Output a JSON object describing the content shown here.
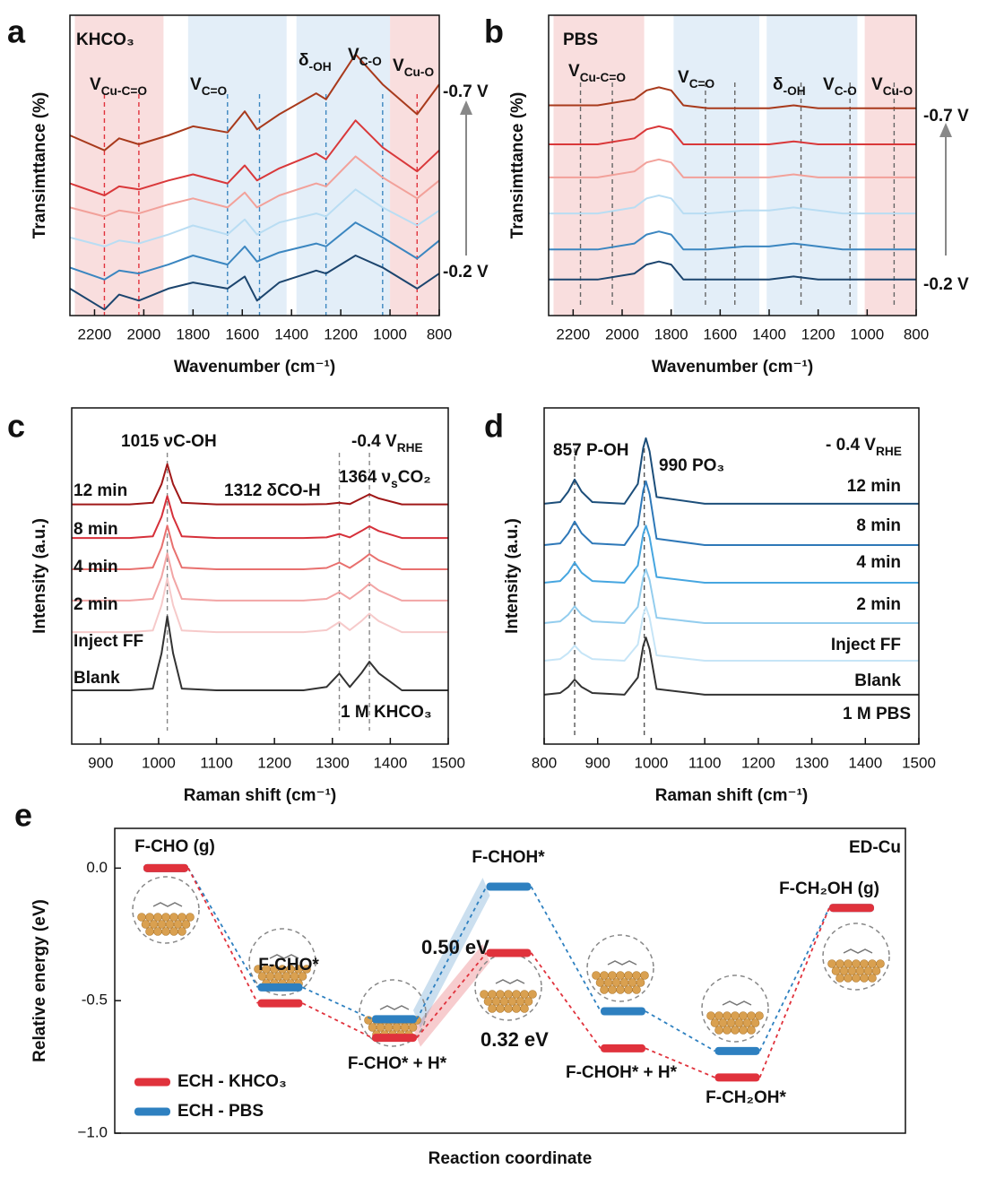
{
  "chart_data": [
    {
      "type": "line",
      "panel": "a",
      "xlabel": "Wavenumber (cm⁻¹)",
      "ylabel": "Transimttance (%)",
      "x": [
        2300,
        2160,
        2100,
        2020,
        1900,
        1800,
        1660,
        1590,
        1540,
        1450,
        1300,
        1260,
        1140,
        1030,
        890,
        800
      ],
      "xlim": [
        2300,
        800
      ],
      "xticks": [
        2200,
        2000,
        1800,
        1600,
        1400,
        1200,
        1000,
        800
      ],
      "ylim": [
        0,
        10
      ],
      "series": [
        {
          "color": "#a83a1c",
          "values": [
            6.0,
            5.5,
            5.9,
            5.7,
            6.0,
            6.3,
            6.1,
            6.8,
            6.2,
            6.7,
            7.4,
            7.2,
            8.7,
            7.7,
            6.7,
            7.7
          ]
        },
        {
          "color": "#d9383a",
          "values": [
            4.4,
            4.0,
            4.3,
            4.2,
            4.5,
            4.7,
            4.4,
            5.0,
            4.5,
            4.9,
            5.4,
            5.2,
            6.5,
            5.6,
            4.8,
            5.5
          ]
        },
        {
          "color": "#f2a19a",
          "values": [
            3.6,
            3.3,
            3.5,
            3.4,
            3.7,
            3.9,
            3.6,
            4.1,
            3.6,
            4.0,
            4.4,
            4.3,
            5.3,
            4.6,
            3.9,
            4.5
          ]
        },
        {
          "color": "#b9ddf3",
          "values": [
            2.6,
            2.3,
            2.5,
            2.4,
            2.7,
            3.0,
            2.7,
            3.2,
            2.7,
            3.1,
            3.4,
            3.3,
            4.2,
            3.6,
            3.0,
            3.5
          ]
        },
        {
          "color": "#3b86c0",
          "values": [
            1.6,
            1.2,
            1.5,
            1.4,
            1.7,
            2.0,
            1.7,
            2.3,
            1.8,
            2.1,
            2.4,
            2.3,
            3.1,
            2.6,
            1.9,
            2.5
          ]
        },
        {
          "color": "#1c456e",
          "values": [
            0.9,
            0.2,
            0.7,
            0.5,
            0.9,
            1.1,
            0.9,
            1.3,
            0.5,
            1.1,
            1.5,
            1.4,
            2.0,
            1.6,
            0.9,
            1.4
          ]
        }
      ],
      "bands": [
        {
          "from": 2280,
          "to": 1920,
          "color": "#f9dede"
        },
        {
          "from": 1820,
          "to": 1420,
          "color": "#e3eef8"
        },
        {
          "from": 1380,
          "to": 1000,
          "color": "#e3eef8"
        },
        {
          "from": 1000,
          "to": 800,
          "color": "#f9dede"
        }
      ],
      "markers": [
        {
          "x": 2160,
          "color": "#e0323c"
        },
        {
          "x": 2020,
          "color": "#e0323c"
        },
        {
          "x": 1660,
          "color": "#3b86c0"
        },
        {
          "x": 1530,
          "color": "#3b86c0"
        },
        {
          "x": 1260,
          "color": "#3b86c0"
        },
        {
          "x": 1030,
          "color": "#3b86c0"
        },
        {
          "x": 890,
          "color": "#e0323c"
        }
      ],
      "annotations": [
        {
          "text": "KHCO₃"
        },
        {
          "text": [
            "V",
            {
              "sub": "Cu-C=O"
            }
          ]
        },
        {
          "text": [
            "V",
            {
              "sub": "C=O"
            }
          ]
        },
        {
          "text": [
            "δ",
            {
              "sub": "-OH"
            }
          ]
        },
        {
          "text": [
            "V",
            {
              "sub": "C-O"
            }
          ]
        },
        {
          "text": [
            "V",
            {
              "sub": "Cu-O"
            }
          ]
        },
        {
          "text": "-0.7 V",
          "color": "#a83a1c"
        },
        {
          "text": "-0.2 V",
          "color": "#1c5a8c"
        }
      ]
    },
    {
      "type": "line",
      "panel": "b",
      "xlabel": "Wavenumber (cm⁻¹)",
      "ylabel": "Transimttance (%)",
      "x": [
        2300,
        2100,
        1950,
        1900,
        1850,
        1800,
        1750,
        1650,
        1500,
        1400,
        1300,
        1200,
        1100,
        1000,
        800
      ],
      "xlim": [
        2300,
        800
      ],
      "xticks": [
        2200,
        2000,
        1800,
        1600,
        1400,
        1200,
        1000,
        800
      ],
      "ylim": [
        0,
        10
      ],
      "series": [
        {
          "color": "#a83a1c",
          "values": [
            7.0,
            7.0,
            7.2,
            7.5,
            7.6,
            7.5,
            7.0,
            6.9,
            6.9,
            6.9,
            7.0,
            6.9,
            6.9,
            6.9,
            6.9
          ]
        },
        {
          "color": "#d9383a",
          "values": [
            5.7,
            5.7,
            5.9,
            6.2,
            6.3,
            6.2,
            5.7,
            5.7,
            5.7,
            5.7,
            5.8,
            5.7,
            5.7,
            5.7,
            5.7
          ]
        },
        {
          "color": "#f2a19a",
          "values": [
            4.6,
            4.6,
            4.8,
            5.1,
            5.2,
            5.1,
            4.6,
            4.6,
            4.6,
            4.6,
            4.7,
            4.6,
            4.6,
            4.6,
            4.6
          ]
        },
        {
          "color": "#b9ddf3",
          "values": [
            3.4,
            3.4,
            3.6,
            3.9,
            4.0,
            3.9,
            3.4,
            3.4,
            3.5,
            3.5,
            3.6,
            3.5,
            3.4,
            3.4,
            3.4
          ]
        },
        {
          "color": "#3b86c0",
          "values": [
            2.2,
            2.2,
            2.4,
            2.7,
            2.8,
            2.7,
            2.2,
            2.2,
            2.3,
            2.3,
            2.4,
            2.3,
            2.2,
            2.2,
            2.2
          ]
        },
        {
          "color": "#1c456e",
          "values": [
            1.2,
            1.2,
            1.4,
            1.7,
            1.8,
            1.7,
            1.2,
            1.2,
            1.2,
            1.2,
            1.3,
            1.2,
            1.2,
            1.2,
            1.2
          ]
        }
      ],
      "bands": [
        {
          "from": 2280,
          "to": 1910,
          "color": "#f9dede"
        },
        {
          "from": 1790,
          "to": 1440,
          "color": "#e3eef8"
        },
        {
          "from": 1410,
          "to": 1040,
          "color": "#e3eef8"
        },
        {
          "from": 1010,
          "to": 800,
          "color": "#f9dede"
        }
      ],
      "markers": [
        {
          "x": 2170,
          "color": "#666666"
        },
        {
          "x": 2040,
          "color": "#666666"
        },
        {
          "x": 1660,
          "color": "#666666"
        },
        {
          "x": 1540,
          "color": "#666666"
        },
        {
          "x": 1270,
          "color": "#666666"
        },
        {
          "x": 1070,
          "color": "#666666"
        },
        {
          "x": 890,
          "color": "#666666"
        }
      ],
      "annotations": [
        {
          "text": "PBS"
        },
        {
          "text": [
            "V",
            {
              "sub": "Cu-C=O"
            }
          ]
        },
        {
          "text": [
            "V",
            {
              "sub": "C=O"
            }
          ]
        },
        {
          "text": [
            "δ",
            {
              "sub": "-OH"
            }
          ]
        },
        {
          "text": [
            "V",
            {
              "sub": "C-O"
            }
          ]
        },
        {
          "text": [
            "V",
            {
              "sub": "Cu-O"
            }
          ]
        },
        {
          "text": "-0.7 V",
          "color": "#a83a1c"
        },
        {
          "text": "-0.2 V",
          "color": "#1c5a8c"
        }
      ]
    },
    {
      "type": "line",
      "panel": "c",
      "xlabel": "Raman shift (cm⁻¹)",
      "ylabel": "Intensity (a.u.)",
      "x": [
        850,
        950,
        990,
        1005,
        1015,
        1025,
        1040,
        1100,
        1250,
        1290,
        1312,
        1330,
        1350,
        1364,
        1380,
        1420,
        1500
      ],
      "xlim": [
        850,
        1500
      ],
      "xticks": [
        900,
        1000,
        1100,
        1200,
        1300,
        1400,
        1500
      ],
      "ylim": [
        0,
        10
      ],
      "series": [
        {
          "name": "12 min",
          "color": "#a01818",
          "values": [
            7.13,
            7.13,
            7.18,
            7.73,
            8.33,
            7.73,
            7.18,
            7.13,
            7.13,
            7.14,
            7.18,
            7.14,
            7.31,
            7.43,
            7.31,
            7.13,
            7.13
          ]
        },
        {
          "name": "8 min",
          "color": "#d6303a",
          "values": [
            6.13,
            6.13,
            6.18,
            6.76,
            7.38,
            6.76,
            6.18,
            6.13,
            6.13,
            6.15,
            6.25,
            6.15,
            6.34,
            6.48,
            6.34,
            6.13,
            6.13
          ]
        },
        {
          "name": "4 min",
          "color": "#e8706e",
          "values": [
            5.2,
            5.2,
            5.25,
            5.85,
            6.5,
            5.85,
            5.25,
            5.2,
            5.2,
            5.24,
            5.4,
            5.24,
            5.47,
            5.65,
            5.47,
            5.2,
            5.2
          ]
        },
        {
          "name": "2 min",
          "color": "#f2a5a5",
          "values": [
            4.27,
            4.27,
            4.32,
            4.97,
            5.67,
            4.97,
            4.32,
            4.27,
            4.27,
            4.32,
            4.52,
            4.32,
            4.57,
            4.77,
            4.57,
            4.27,
            4.27
          ]
        },
        {
          "name": "Inject FF",
          "color": "#f6caca",
          "values": [
            3.33,
            3.33,
            3.38,
            4.13,
            4.93,
            4.13,
            3.38,
            3.33,
            3.33,
            3.39,
            3.63,
            3.39,
            3.66,
            3.88,
            3.66,
            3.33,
            3.33
          ]
        },
        {
          "name": "Blank",
          "color": "#333333",
          "values": [
            1.6,
            1.6,
            1.65,
            2.7,
            3.8,
            2.7,
            1.65,
            1.6,
            1.6,
            1.7,
            2.1,
            1.7,
            2.11,
            2.45,
            2.11,
            1.6,
            1.6
          ]
        }
      ],
      "markers": [
        {
          "x": 1015,
          "color": "#888888"
        },
        {
          "x": 1312,
          "color": "#888888"
        },
        {
          "x": 1364,
          "color": "#888888"
        }
      ],
      "annotations": [
        {
          "text": "1015 νC-OH"
        },
        {
          "text": [
            "-0.4 V",
            {
              "sub": "RHE"
            }
          ]
        },
        {
          "text": "1312 δCO-H"
        },
        {
          "text": [
            "1364 ν",
            {
              "sub": "s"
            },
            "CO₂"
          ]
        },
        {
          "text": "1 M KHCO₃"
        }
      ]
    },
    {
      "type": "line",
      "panel": "d",
      "xlabel": "Raman shift (cm⁻¹)",
      "ylabel": "Intensity (a.u.)",
      "x": [
        800,
        830,
        845,
        857,
        870,
        890,
        950,
        975,
        985,
        990,
        997,
        1010,
        1100,
        1300,
        1500
      ],
      "xlim": [
        800,
        1500
      ],
      "xticks": [
        800,
        900,
        1000,
        1100,
        1200,
        1300,
        1400,
        1500
      ],
      "ylim": [
        0,
        10
      ],
      "series": [
        {
          "name": "12 min",
          "color": "#1c4e7a",
          "values": [
            7.15,
            7.2,
            7.51,
            7.87,
            7.51,
            7.2,
            7.15,
            7.74,
            8.81,
            9.1,
            8.71,
            7.35,
            7.15,
            7.15,
            7.15
          ]
        },
        {
          "name": "8 min",
          "color": "#2e78b8",
          "values": [
            5.92,
            5.97,
            6.27,
            6.62,
            6.27,
            5.97,
            5.92,
            6.49,
            7.54,
            7.82,
            7.44,
            6.11,
            5.92,
            5.92,
            5.92
          ]
        },
        {
          "name": "4 min",
          "color": "#46a6e0",
          "values": [
            4.8,
            4.85,
            5.1,
            5.4,
            5.1,
            4.85,
            4.8,
            5.31,
            6.25,
            6.5,
            6.16,
            4.97,
            4.8,
            4.8,
            4.8
          ]
        },
        {
          "name": "2 min",
          "color": "#93cdee",
          "values": [
            3.6,
            3.65,
            3.85,
            4.1,
            3.85,
            3.65,
            3.6,
            4.08,
            4.96,
            5.2,
            4.88,
            3.76,
            3.6,
            3.6,
            3.6
          ]
        },
        {
          "name": "Inject FF",
          "color": "#c6e5f7",
          "values": [
            2.48,
            2.53,
            2.71,
            2.93,
            2.71,
            2.53,
            2.48,
            2.96,
            3.84,
            4.08,
            3.76,
            2.64,
            2.48,
            2.48,
            2.48
          ]
        },
        {
          "name": "Blank",
          "color": "#333333",
          "values": [
            1.47,
            1.52,
            1.7,
            1.92,
            1.7,
            1.52,
            1.47,
            1.98,
            2.92,
            3.17,
            2.83,
            1.64,
            1.47,
            1.47,
            1.47
          ]
        }
      ],
      "markers": [
        {
          "x": 857,
          "color": "#555555"
        },
        {
          "x": 987,
          "color": "#555555"
        }
      ],
      "annotations": [
        {
          "text": "857 P-OH",
          "color": "#444444"
        },
        {
          "text": "990 PO₃",
          "color": "#8a8a8a"
        },
        {
          "text": [
            "- 0.4 V",
            {
              "sub": "RHE"
            }
          ]
        },
        {
          "text": "1 M PBS"
        }
      ]
    },
    {
      "type": "energy",
      "panel": "e",
      "xlabel": "Reaction coordinate",
      "ylabel": "Relative energy (eV)",
      "categories": [
        "F-CHO (g)",
        "F-CHO*",
        "F-CHO* + H*",
        "F-CHOH*",
        "F-CHOH* + H*",
        "F-CH₂OH*",
        "F-CH₂OH (g)"
      ],
      "ylim": [
        -1.0,
        0.15
      ],
      "yticks": [
        {
          "value": 0,
          "label": "0.0"
        },
        {
          "value": -0.5,
          "label": "-0.5"
        },
        {
          "value": -1.0,
          "label": "−1.0"
        }
      ],
      "series": [
        {
          "name": "ECH - KHCO₃",
          "color": "#e0323c",
          "values": [
            0.0,
            -0.51,
            -0.64,
            -0.32,
            -0.68,
            -0.79,
            -0.15
          ]
        },
        {
          "name": "ECH - PBS",
          "color": "#2e80c0",
          "values": [
            0.0,
            -0.45,
            -0.57,
            -0.07,
            -0.54,
            -0.69,
            -0.15
          ]
        }
      ],
      "annotations": [
        {
          "text": "0.50 eV",
          "color": "#2e86c1"
        },
        {
          "text": "0.32 eV",
          "color": "#e0323c"
        },
        {
          "text": "ED-Cu"
        }
      ]
    }
  ]
}
